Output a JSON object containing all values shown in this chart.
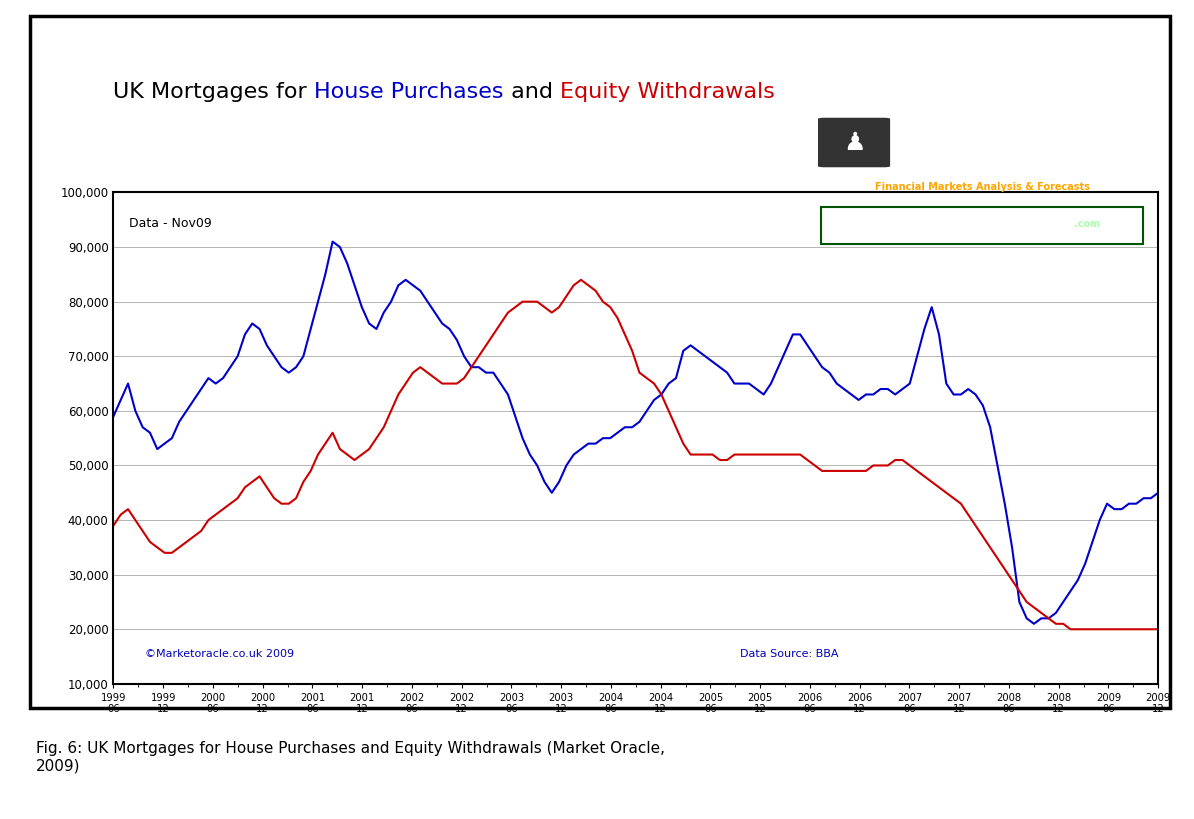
{
  "title_parts": [
    {
      "text": "UK Mortgages for ",
      "color": "black"
    },
    {
      "text": "House Purchases",
      "color": "#0000cc"
    },
    {
      "text": " and ",
      "color": "black"
    },
    {
      "text": "Equity Withdrawals",
      "color": "#cc0000"
    }
  ],
  "annotation_data_nov09": "Data - Nov09",
  "annotation_copyright": "©Marketoracle.co.uk 2009",
  "annotation_datasource": "Data Source: BBA",
  "caption": "Fig. 6: UK Mortgages for House Purchases and Equity Withdrawals (Market Oracle,\n2009)",
  "ylim": [
    10000,
    100000
  ],
  "yticks": [
    10000,
    20000,
    30000,
    40000,
    50000,
    60000,
    70000,
    80000,
    90000,
    100000
  ],
  "blue_line_color": "#0000cc",
  "red_line_color": "#cc0000",
  "background_color": "#ffffff",
  "chart_bg_color": "#ffffff",
  "grid_color": "#aaaaaa",
  "x_labels": [
    "1999\n06",
    "1999\n12",
    "2000\n06",
    "2000\n12",
    "2001\n06",
    "2001\n12",
    "2002\n06",
    "2002\n12",
    "2003\n06",
    "2003\n12",
    "2004\n06",
    "2004\n12",
    "2005\n06",
    "2005\n12",
    "2006\n06",
    "2006\n12",
    "2007\n06",
    "2007\n12",
    "2008\n06",
    "2008\n12",
    "2009\n06",
    "2009\n12"
  ],
  "house_purchases": [
    59000,
    62000,
    65000,
    60000,
    57000,
    56000,
    53000,
    54000,
    55000,
    58000,
    60000,
    62000,
    64000,
    66000,
    65000,
    66000,
    68000,
    70000,
    74000,
    76000,
    75000,
    72000,
    70000,
    68000,
    67000,
    68000,
    70000,
    75000,
    80000,
    85000,
    91000,
    90000,
    87000,
    83000,
    79000,
    76000,
    75000,
    78000,
    80000,
    83000,
    84000,
    83000,
    82000,
    80000,
    78000,
    76000,
    75000,
    73000,
    70000,
    68000,
    68000,
    67000,
    67000,
    65000,
    63000,
    59000,
    55000,
    52000,
    50000,
    47000,
    45000,
    47000,
    50000,
    52000,
    53000,
    54000,
    54000,
    55000,
    55000,
    56000,
    57000,
    57000,
    58000,
    60000,
    62000,
    63000,
    65000,
    66000,
    71000,
    72000,
    71000,
    70000,
    69000,
    68000,
    67000,
    65000,
    65000,
    65000,
    64000,
    63000,
    65000,
    68000,
    71000,
    74000,
    74000,
    72000,
    70000,
    68000,
    67000,
    65000,
    64000,
    63000,
    62000,
    63000,
    63000,
    64000,
    64000,
    63000,
    64000,
    65000,
    70000,
    75000,
    79000,
    74000,
    65000,
    63000,
    63000,
    64000,
    63000,
    61000,
    57000,
    50000,
    43000,
    35000,
    25000,
    22000,
    21000,
    22000,
    22000,
    23000,
    25000,
    27000,
    29000,
    32000,
    36000,
    40000,
    43000,
    42000,
    42000,
    43000,
    43000,
    44000,
    44000,
    45000
  ],
  "equity_withdrawals": [
    39000,
    41000,
    42000,
    40000,
    38000,
    36000,
    35000,
    34000,
    34000,
    35000,
    36000,
    37000,
    38000,
    40000,
    41000,
    42000,
    43000,
    44000,
    46000,
    47000,
    48000,
    46000,
    44000,
    43000,
    43000,
    44000,
    47000,
    49000,
    52000,
    54000,
    56000,
    53000,
    52000,
    51000,
    52000,
    53000,
    55000,
    57000,
    60000,
    63000,
    65000,
    67000,
    68000,
    67000,
    66000,
    65000,
    65000,
    65000,
    66000,
    68000,
    70000,
    72000,
    74000,
    76000,
    78000,
    79000,
    80000,
    80000,
    80000,
    79000,
    78000,
    79000,
    81000,
    83000,
    84000,
    83000,
    82000,
    80000,
    79000,
    77000,
    74000,
    71000,
    67000,
    66000,
    65000,
    63000,
    60000,
    57000,
    54000,
    52000,
    52000,
    52000,
    52000,
    51000,
    51000,
    52000,
    52000,
    52000,
    52000,
    52000,
    52000,
    52000,
    52000,
    52000,
    52000,
    51000,
    50000,
    49000,
    49000,
    49000,
    49000,
    49000,
    49000,
    49000,
    50000,
    50000,
    50000,
    51000,
    51000,
    50000,
    49000,
    48000,
    47000,
    46000,
    45000,
    44000,
    43000,
    41000,
    39000,
    37000,
    35000,
    33000,
    31000,
    29000,
    27000,
    25000,
    24000,
    23000,
    22000,
    21000,
    21000,
    20000,
    20000,
    20000,
    20000,
    20000,
    20000,
    20000,
    20000,
    20000,
    20000,
    20000,
    20000,
    20000
  ]
}
